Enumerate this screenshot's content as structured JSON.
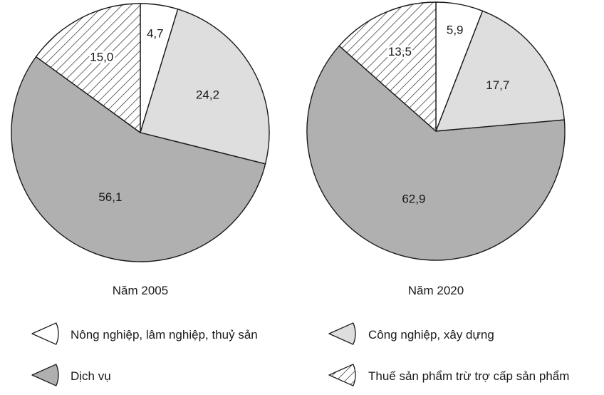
{
  "chart_data": {
    "type": "pie",
    "unit": "",
    "categories": [
      "Nông nghiệp, lâm nghiệp, thuỷ sản",
      "Công nghiệp, xây dựng",
      "Dịch vụ",
      "Thuế sản phẩm trừ trợ cấp sản phẩm"
    ],
    "fills": [
      "white",
      "light-gray",
      "dark-gray",
      "hatched"
    ],
    "colors": {
      "white": "#ffffff",
      "light-gray": "#dedede",
      "dark-gray": "#b0b0b0",
      "hatch": "#1a1a1a",
      "outline": "#1a1a1a"
    },
    "charts": [
      {
        "label": "Năm 2005",
        "values": [
          4.7,
          24.2,
          56.1,
          15.0
        ],
        "value_labels": [
          "4,7",
          "24,2",
          "56,1",
          "15,0"
        ]
      },
      {
        "label": "Năm 2020",
        "values": [
          5.9,
          17.7,
          62.9,
          13.5
        ],
        "value_labels": [
          "5,9",
          "17,7",
          "62,9",
          "13,5"
        ]
      }
    ],
    "legend_position": "bottom"
  }
}
